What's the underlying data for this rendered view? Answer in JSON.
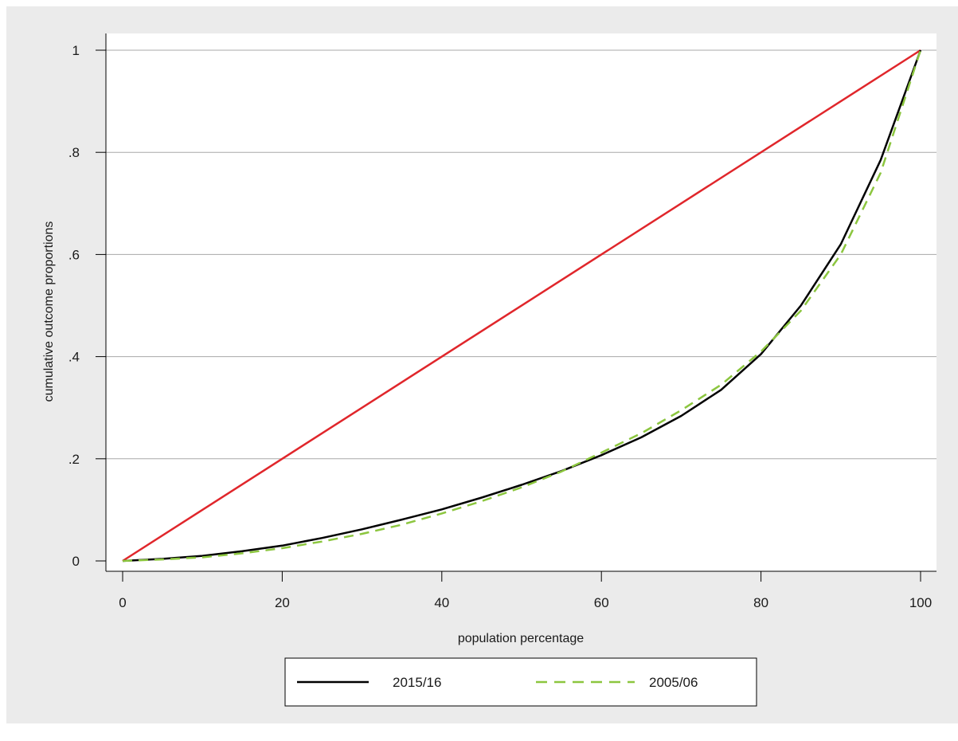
{
  "chart_data": {
    "type": "line",
    "title": "",
    "xlabel": "population percentage",
    "ylabel": "cumulative outcome proportions",
    "xlim": [
      0,
      100
    ],
    "ylim": [
      0,
      1
    ],
    "x_ticks": [
      0,
      20,
      40,
      60,
      80,
      100
    ],
    "x_tick_labels": [
      "0",
      "20",
      "40",
      "60",
      "80",
      "100"
    ],
    "y_ticks": [
      0,
      0.2,
      0.4,
      0.6,
      0.8,
      1
    ],
    "y_tick_labels": [
      "0",
      ".2",
      ".4",
      ".6",
      ".8",
      "1"
    ],
    "grid": "horizontal",
    "legend_position": "bottom",
    "series": [
      {
        "name": "",
        "color": "#e0262b",
        "style": "solid",
        "x": [
          0,
          100
        ],
        "y": [
          0,
          1
        ]
      },
      {
        "name": "2015/16",
        "color": "#000000",
        "style": "solid",
        "x": [
          0,
          5,
          10,
          15,
          20,
          25,
          30,
          35,
          40,
          45,
          50,
          55,
          60,
          65,
          70,
          75,
          80,
          85,
          90,
          95,
          100
        ],
        "y": [
          0,
          0.004,
          0.01,
          0.019,
          0.03,
          0.045,
          0.062,
          0.081,
          0.101,
          0.124,
          0.149,
          0.176,
          0.207,
          0.242,
          0.284,
          0.335,
          0.405,
          0.5,
          0.62,
          0.785,
          1
        ]
      },
      {
        "name": "2005/06",
        "color": "#8cc63f",
        "style": "dashed",
        "x": [
          0,
          5,
          10,
          15,
          20,
          25,
          30,
          35,
          40,
          45,
          50,
          55,
          60,
          65,
          70,
          75,
          80,
          85,
          90,
          95,
          100
        ],
        "y": [
          0,
          0.003,
          0.007,
          0.015,
          0.025,
          0.038,
          0.053,
          0.071,
          0.093,
          0.117,
          0.144,
          0.175,
          0.212,
          0.25,
          0.295,
          0.345,
          0.41,
          0.49,
          0.6,
          0.76,
          1
        ]
      }
    ]
  },
  "legend": {
    "items": [
      {
        "label": "2015/16",
        "color": "#000000",
        "style": "solid"
      },
      {
        "label": "2005/06",
        "color": "#8cc63f",
        "style": "dashed"
      }
    ]
  }
}
